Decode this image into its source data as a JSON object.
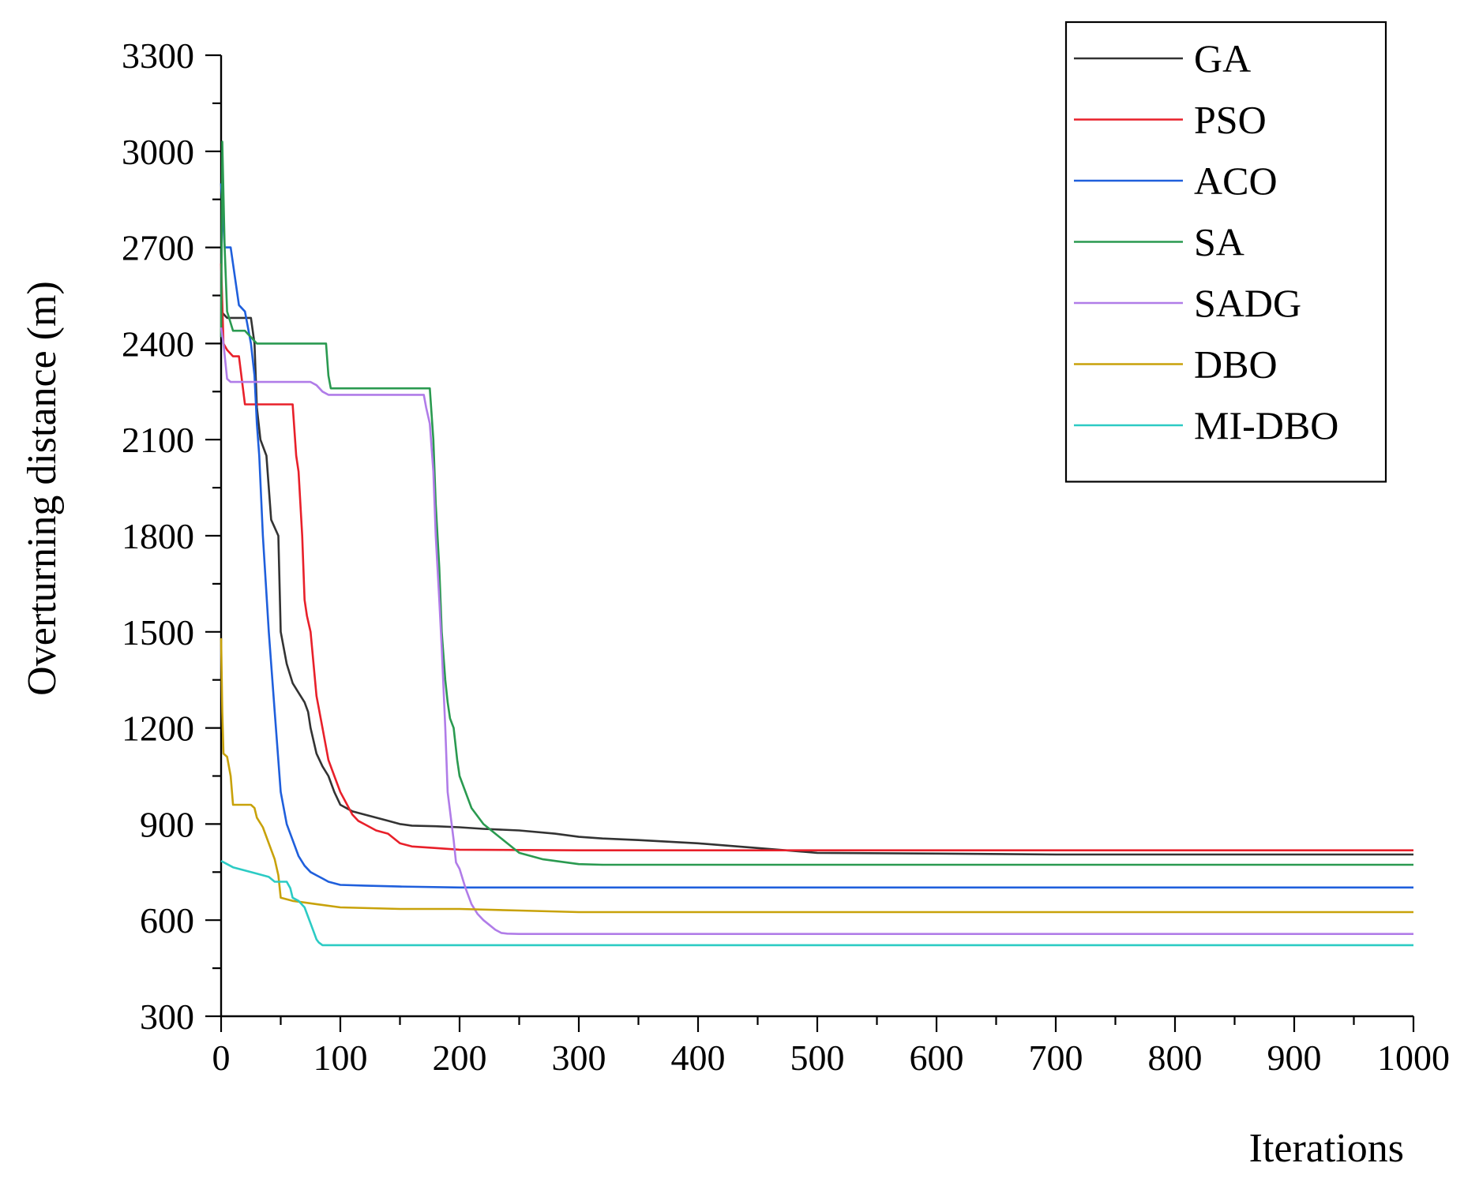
{
  "chart_data": {
    "type": "line",
    "title": "",
    "xlabel": "Iterations",
    "ylabel": "Overturning distance (m)",
    "xlim": [
      0,
      1000
    ],
    "ylim": [
      300,
      3300
    ],
    "xticks": [
      0,
      100,
      200,
      300,
      400,
      500,
      600,
      700,
      800,
      900,
      1000
    ],
    "yticks": [
      300,
      600,
      900,
      1200,
      1500,
      1800,
      2100,
      2400,
      2700,
      3000,
      3300
    ],
    "xtick_labels": [
      "0",
      "100",
      "200",
      "300",
      "400",
      "500",
      "600",
      "700",
      "800",
      "900",
      "1000"
    ],
    "ytick_labels": [
      "300",
      "600",
      "900",
      "1200",
      "1500",
      "1800",
      "2100",
      "2400",
      "2700",
      "3000",
      "3300"
    ],
    "grid": false,
    "legend_position": "top-right",
    "series": [
      {
        "name": "GA",
        "color": "#333333",
        "x": [
          0,
          5,
          10,
          25,
          28,
          30,
          33,
          38,
          42,
          48,
          50,
          55,
          60,
          65,
          70,
          73,
          75,
          80,
          85,
          90,
          95,
          100,
          110,
          120,
          130,
          140,
          150,
          160,
          180,
          200,
          220,
          250,
          280,
          300,
          320,
          350,
          400,
          450,
          500,
          600,
          700,
          800,
          900,
          1000
        ],
        "y": [
          2500,
          2480,
          2480,
          2480,
          2400,
          2200,
          2100,
          2050,
          1850,
          1800,
          1500,
          1400,
          1340,
          1310,
          1280,
          1250,
          1200,
          1120,
          1080,
          1050,
          1000,
          960,
          940,
          930,
          920,
          910,
          900,
          895,
          893,
          890,
          885,
          880,
          870,
          860,
          855,
          850,
          840,
          825,
          810,
          808,
          805,
          805,
          805,
          805
        ]
      },
      {
        "name": "PSO",
        "color": "#e8202a",
        "x": [
          0,
          2,
          5,
          10,
          15,
          20,
          22,
          30,
          40,
          50,
          60,
          63,
          65,
          68,
          70,
          72,
          75,
          80,
          85,
          90,
          95,
          100,
          110,
          115,
          120,
          130,
          140,
          150,
          160,
          180,
          200,
          300,
          500,
          1000
        ],
        "y": [
          2650,
          2400,
          2380,
          2360,
          2360,
          2210,
          2210,
          2210,
          2210,
          2210,
          2210,
          2050,
          2000,
          1800,
          1600,
          1550,
          1500,
          1300,
          1200,
          1100,
          1050,
          1000,
          930,
          910,
          900,
          880,
          870,
          840,
          830,
          825,
          820,
          818,
          818,
          818
        ]
      },
      {
        "name": "ACO",
        "color": "#1f5fdc",
        "x": [
          0,
          3,
          8,
          15,
          20,
          25,
          28,
          30,
          32,
          35,
          40,
          45,
          50,
          55,
          60,
          65,
          70,
          75,
          80,
          85,
          90,
          95,
          100,
          120,
          150,
          200,
          300,
          1000
        ],
        "y": [
          2900,
          2700,
          2700,
          2520,
          2500,
          2400,
          2300,
          2150,
          2050,
          1800,
          1500,
          1250,
          1000,
          900,
          850,
          800,
          770,
          750,
          740,
          730,
          720,
          715,
          710,
          708,
          705,
          702,
          702,
          702
        ]
      },
      {
        "name": "SA",
        "color": "#2a9a50",
        "x": [
          0,
          1,
          3,
          5,
          10,
          20,
          30,
          60,
          88,
          90,
          92,
          100,
          120,
          150,
          175,
          178,
          180,
          183,
          185,
          188,
          190,
          192,
          195,
          198,
          200,
          210,
          220,
          230,
          240,
          250,
          270,
          300,
          320,
          400,
          1000
        ],
        "y": [
          2420,
          3030,
          2700,
          2500,
          2440,
          2440,
          2400,
          2400,
          2400,
          2300,
          2260,
          2260,
          2260,
          2260,
          2260,
          2100,
          1900,
          1700,
          1500,
          1350,
          1280,
          1230,
          1200,
          1100,
          1050,
          950,
          900,
          870,
          840,
          810,
          790,
          775,
          773,
          773,
          773
        ]
      },
      {
        "name": "SADG",
        "color": "#b07ce8",
        "x": [
          0,
          2,
          5,
          8,
          60,
          75,
          80,
          85,
          90,
          140,
          170,
          172,
          175,
          178,
          180,
          183,
          185,
          188,
          190,
          195,
          197,
          200,
          205,
          210,
          215,
          220,
          225,
          230,
          235,
          240,
          250,
          1000
        ],
        "y": [
          2450,
          2400,
          2290,
          2280,
          2280,
          2280,
          2270,
          2250,
          2240,
          2240,
          2240,
          2200,
          2150,
          2000,
          1800,
          1600,
          1450,
          1200,
          1000,
          850,
          780,
          760,
          700,
          650,
          620,
          600,
          585,
          570,
          560,
          558,
          557,
          557
        ]
      },
      {
        "name": "DBO",
        "color": "#c8a20a",
        "x": [
          0,
          1,
          2,
          5,
          8,
          10,
          15,
          20,
          25,
          28,
          30,
          35,
          40,
          45,
          48,
          50,
          55,
          60,
          80,
          100,
          150,
          200,
          250,
          300,
          1000
        ],
        "y": [
          1480,
          1250,
          1120,
          1110,
          1050,
          960,
          960,
          960,
          960,
          950,
          920,
          890,
          840,
          790,
          740,
          670,
          665,
          660,
          650,
          640,
          635,
          635,
          630,
          625,
          625
        ]
      },
      {
        "name": "MI-DBO",
        "color": "#2ccbc4",
        "x": [
          0,
          5,
          10,
          20,
          30,
          40,
          45,
          50,
          55,
          58,
          60,
          65,
          70,
          75,
          78,
          80,
          82,
          85,
          90,
          100,
          1000
        ],
        "y": [
          785,
          775,
          765,
          755,
          745,
          735,
          720,
          720,
          720,
          700,
          670,
          660,
          640,
          590,
          560,
          540,
          530,
          522,
          522,
          522,
          522
        ]
      }
    ]
  }
}
